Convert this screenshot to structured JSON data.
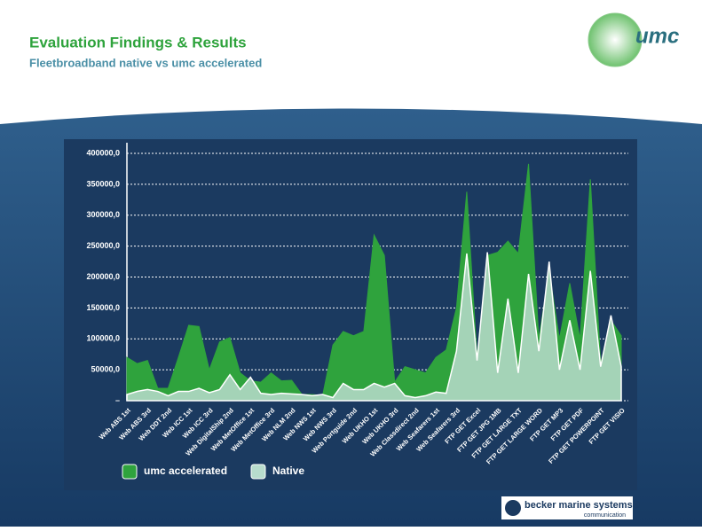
{
  "header": {
    "title": "Evaluation Findings & Results",
    "subtitle": "Fleetbroadband native vs umc accelerated",
    "logo": "umc"
  },
  "footer": {
    "brand": "becker marine systems®",
    "tagline": "communication"
  },
  "chart_data": {
    "type": "area",
    "categories": [
      "Web ABS 1st",
      null,
      "Web ABS 3rd",
      null,
      "Web DDT 2nd",
      null,
      "Web ICC 1st",
      null,
      "Web ICC 3rd",
      null,
      "Web DigitalShip 2nd",
      null,
      "Web MetOffice 1st",
      null,
      "Web MetOffice 3rd",
      null,
      "Web NLM 2nd",
      null,
      "Web NWS 1st",
      null,
      "Web NWS 3rd",
      null,
      "Web Portguide 2nd",
      null,
      "Web UKHO 1st",
      null,
      "Web UKHO 3rd",
      null,
      "Web Classdirect 2nd",
      null,
      "Web Seafarers 1st",
      null,
      "Web Seafarers 3rd",
      null,
      "FTP GET Excel",
      null,
      "FTP GET JPG 1MB",
      null,
      "FTP GET LARGE TXT",
      null,
      "FTP GET LARGE WORD",
      null,
      "FTP GET MP3",
      null,
      "FTP GET PDF",
      null,
      "FTP GET POWERPOINT",
      null,
      "FTP GET VISIO"
    ],
    "series": [
      {
        "name": "umc accelerated",
        "color": "#2fa33d",
        "values": [
          70000,
          60000,
          65000,
          20000,
          20000,
          70000,
          122000,
          120000,
          50000,
          95000,
          102000,
          45000,
          32000,
          30000,
          45000,
          32000,
          33000,
          10000,
          10000,
          8000,
          90000,
          112000,
          105000,
          112000,
          268000,
          235000,
          30000,
          55000,
          50000,
          45000,
          70000,
          82000,
          150000,
          338000,
          70000,
          235000,
          240000,
          258000,
          238000,
          383000,
          100000,
          210000,
          100000,
          190000,
          100000,
          358000,
          60000,
          130000,
          105000
        ]
      },
      {
        "name": "Native",
        "color": "#b8dccd",
        "values": [
          10000,
          15000,
          18000,
          15000,
          8000,
          15000,
          15000,
          20000,
          13000,
          18000,
          42000,
          18000,
          38000,
          12000,
          10000,
          12000,
          11000,
          10000,
          8000,
          10000,
          5000,
          28000,
          18000,
          18000,
          28000,
          22000,
          28000,
          8000,
          5000,
          8000,
          14000,
          12000,
          80000,
          238000,
          65000,
          240000,
          45000,
          165000,
          45000,
          205000,
          80000,
          225000,
          50000,
          130000,
          50000,
          210000,
          55000,
          138000,
          55000
        ]
      }
    ],
    "ylim": [
      0,
      400000
    ],
    "yticks": [
      {
        "value": 0,
        "label": "–"
      },
      {
        "value": 50000,
        "label": "50000,0"
      },
      {
        "value": 100000,
        "label": "100000,0"
      },
      {
        "value": 150000,
        "label": "150000,0"
      },
      {
        "value": 200000,
        "label": "200000,0"
      },
      {
        "value": 250000,
        "label": "250000,0"
      },
      {
        "value": 300000,
        "label": "300000,0"
      },
      {
        "value": 350000,
        "label": "350000,0"
      },
      {
        "value": 400000,
        "label": "400000,0"
      }
    ],
    "grid": true
  }
}
